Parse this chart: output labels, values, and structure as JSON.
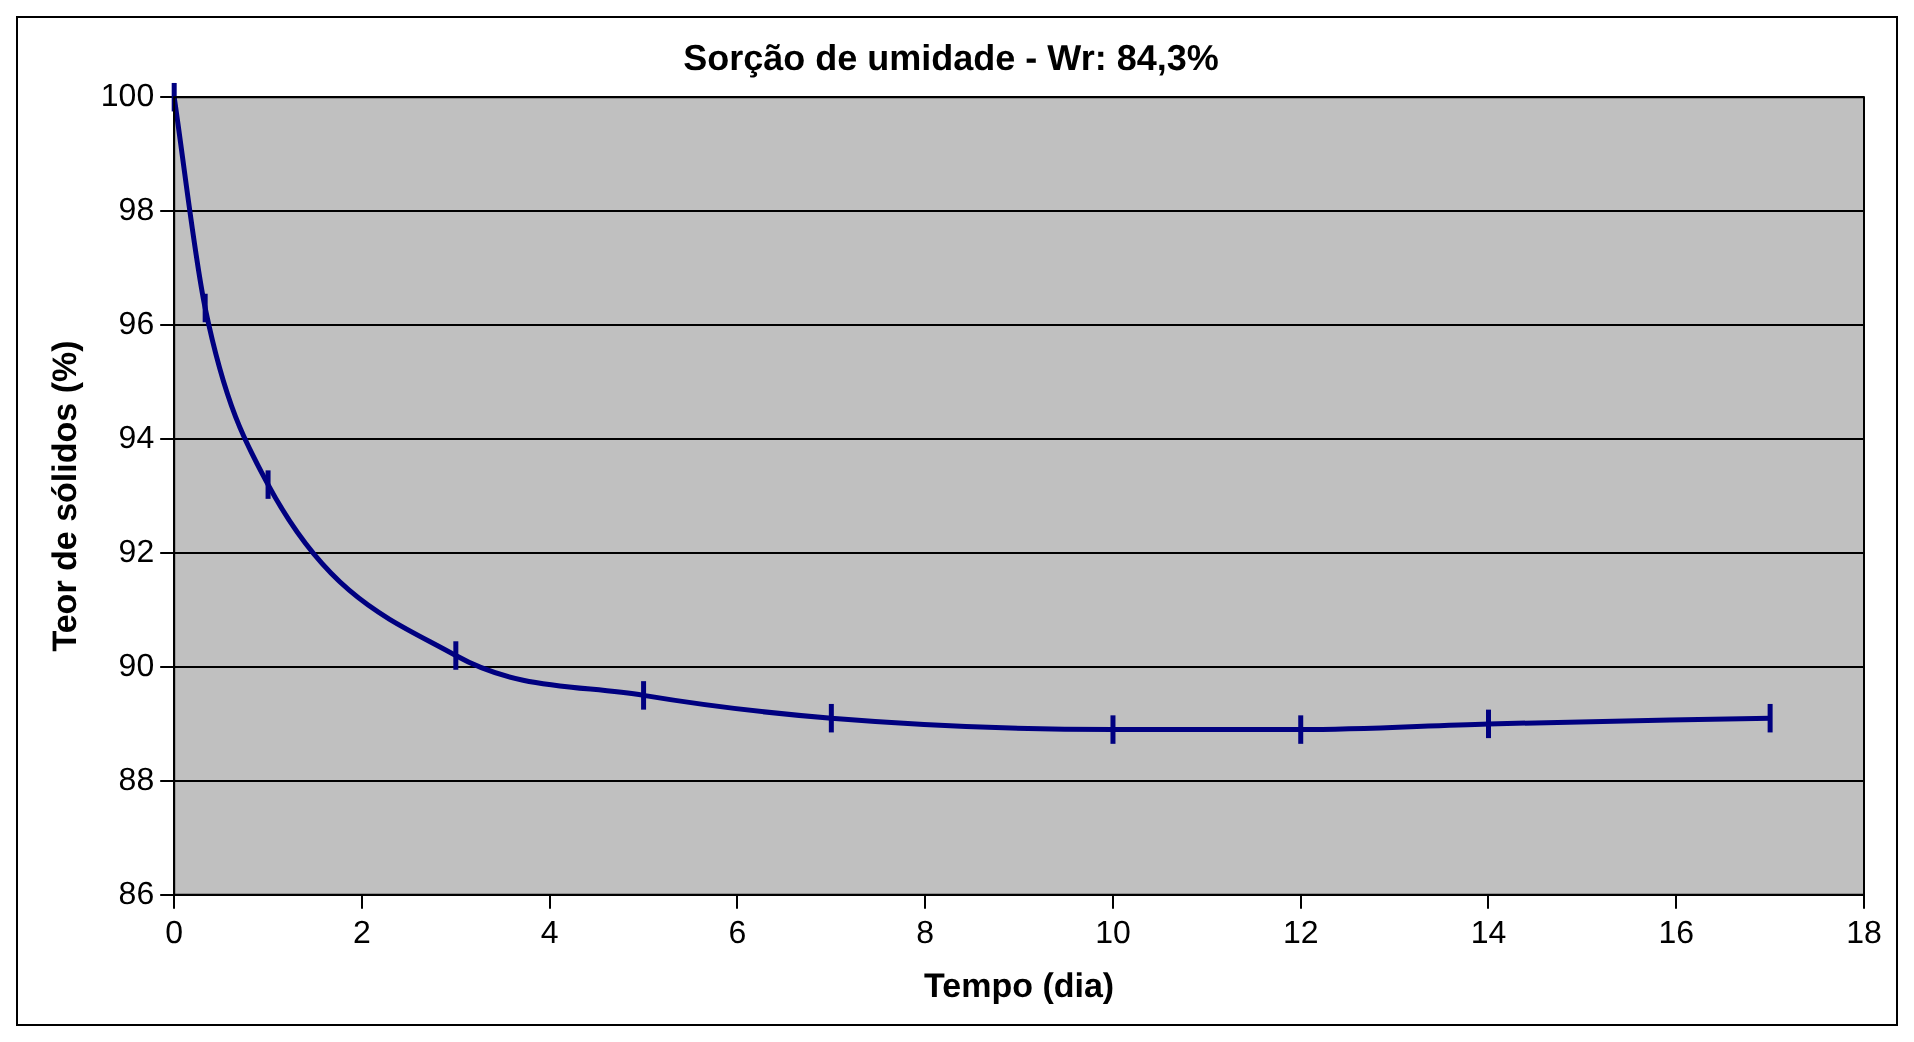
{
  "chart_data": {
    "type": "line",
    "title": "Sorção de umidade - Wr: 84,3%",
    "xlabel": "Tempo (dia)",
    "ylabel": "Teor de sólidos (%)",
    "x": [
      0,
      0.33,
      1,
      3,
      5,
      7,
      10,
      12,
      14,
      17
    ],
    "series": [
      {
        "color": "#000080",
        "values": [
          100,
          96.3,
          93.2,
          90.2,
          89.5,
          89.1,
          88.9,
          88.9,
          89.0,
          89.1
        ],
        "errors": [
          0.25,
          0.25,
          0.25,
          0.25,
          0.25,
          0.25,
          0.25,
          0.25,
          0.25,
          0.25
        ]
      }
    ],
    "xlim": [
      0,
      18
    ],
    "xticks": [
      0,
      2,
      4,
      6,
      8,
      10,
      12,
      14,
      16,
      18
    ],
    "ylim": [
      86,
      100
    ],
    "yticks": [
      86,
      88,
      90,
      92,
      94,
      96,
      98,
      100
    ],
    "grid": "y",
    "legend": false,
    "marker": "none",
    "line_style": "solid"
  }
}
